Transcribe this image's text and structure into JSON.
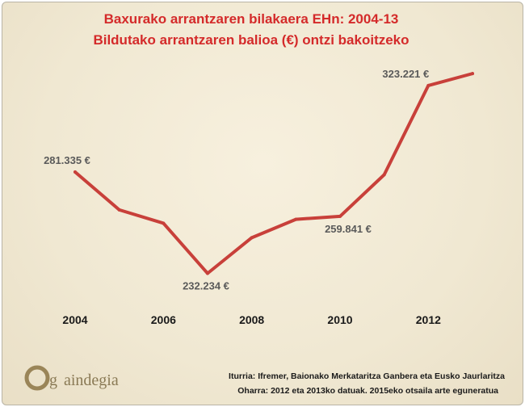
{
  "chart_data": {
    "type": "line",
    "title": "Baxurako arrantzaren bilakaera EHn: 2004-13",
    "subtitle": "Bildutako arrantzaren balioa (€) ontzi bakoitzeko",
    "x": [
      2004,
      2005,
      2006,
      2007,
      2008,
      2009,
      2010,
      2011,
      2012,
      2013
    ],
    "x_tick_labels": [
      "2004",
      "2006",
      "2008",
      "2010",
      "2012"
    ],
    "series": [
      {
        "values": [
          281335,
          263000,
          256500,
          232234,
          249500,
          258400,
          259841,
          280000,
          323221,
          329000
        ]
      }
    ],
    "data_labels": [
      {
        "index": 0,
        "text": "281.335 €"
      },
      {
        "index": 3,
        "text": "232.234 €"
      },
      {
        "index": 6,
        "text": "259.841 €"
      },
      {
        "index": 8,
        "text": "323.221 €"
      }
    ],
    "ylim": [
      225000,
      340000
    ],
    "grid": false,
    "line_color": "#c8403a"
  },
  "footer": {
    "source": "Iturria: Ifremer, Baionako Merkataritza Ganbera eta Eusko Jaurlaritza",
    "note": "Oharra: 2012 eta 2013ko datuak. 2015eko otsaila arte eguneratua"
  },
  "logo": {
    "mark": "O",
    "text": "aindegia",
    "letter": "g"
  }
}
